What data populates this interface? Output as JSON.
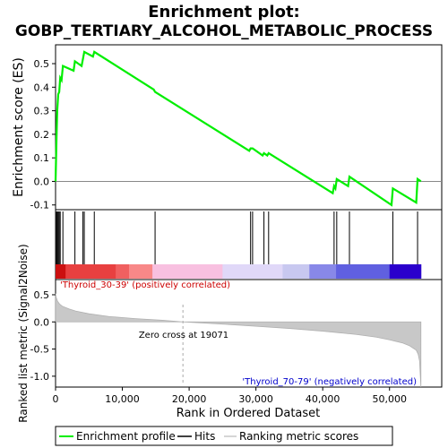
{
  "title": {
    "line1": "Enrichment plot:",
    "line2": "GOBP_TERTIARY_ALCOHOL_METABOLIC_PROCESS"
  },
  "colors": {
    "es_line": "#00ee00",
    "hit": "#000000",
    "metric_fill": "#c8c8c8",
    "zero_cross_line": "#aaaaaa",
    "pos_label": "#cc0000",
    "neg_label": "#0000cc"
  },
  "chart_data": [
    {
      "type": "line",
      "name": "enrichment-score-panel",
      "ylabel": "Enrichment score (ES)",
      "ylim": [
        -0.12,
        0.58
      ],
      "xlim": [
        0,
        55000
      ],
      "yticks": [
        -0.1,
        0.0,
        0.1,
        0.2,
        0.3,
        0.4,
        0.5
      ],
      "ytick_labels": [
        "-0.1",
        "0.0",
        "0.1",
        "0.2",
        "0.3",
        "0.4",
        "0.5"
      ],
      "series": [
        {
          "x": [
            0,
            150,
            250,
            400,
            550,
            700,
            900,
            1100,
            2700,
            2900,
            3900,
            4100,
            4300,
            5600,
            5800,
            14700,
            14900,
            29000,
            29200,
            29500,
            31000,
            31200,
            31700,
            31900,
            41500,
            41700,
            41900,
            42100,
            43800,
            44000,
            50300,
            50500,
            54000,
            54200,
            54700
          ],
          "y": [
            0.0,
            0.19,
            0.3,
            0.37,
            0.38,
            0.44,
            0.43,
            0.49,
            0.47,
            0.51,
            0.49,
            0.52,
            0.55,
            0.53,
            0.55,
            0.39,
            0.38,
            0.13,
            0.14,
            0.14,
            0.11,
            0.12,
            0.11,
            0.12,
            -0.05,
            -0.02,
            -0.03,
            0.01,
            -0.02,
            0.02,
            -0.1,
            -0.03,
            -0.09,
            0.01,
            0.0
          ]
        }
      ]
    },
    {
      "type": "hits",
      "name": "hits-panel",
      "hits": [
        150,
        250,
        400,
        550,
        700,
        1100,
        2900,
        4100,
        4300,
        5800,
        14900,
        29200,
        29500,
        31200,
        31900,
        41700,
        42100,
        44000,
        50500,
        54200
      ]
    },
    {
      "type": "area",
      "name": "ranked-metric-panel",
      "xlabel": "Rank in Ordered Dataset",
      "ylabel": "Ranked list metric (Signal2Noise)",
      "xlim": [
        0,
        55000
      ],
      "ylim": [
        -1.2,
        0.78
      ],
      "xticks": [
        0,
        10000,
        20000,
        30000,
        40000,
        50000
      ],
      "xtick_labels": [
        "0",
        "10,000",
        "20,000",
        "30,000",
        "40,000",
        "50,000"
      ],
      "yticks": [
        -1.0,
        -0.5,
        0.0,
        0.5
      ],
      "ytick_labels": [
        "-1.0",
        "-0.5",
        "0.0",
        "0.5"
      ],
      "x": [
        0,
        100,
        300,
        600,
        1000,
        2000,
        3000,
        5000,
        8000,
        12000,
        16000,
        19071,
        25000,
        30000,
        35000,
        40000,
        45000,
        48000,
        50000,
        52000,
        53000,
        54000,
        54300,
        54500,
        54700
      ],
      "values": [
        0.52,
        0.45,
        0.38,
        0.33,
        0.29,
        0.24,
        0.2,
        0.15,
        0.1,
        0.06,
        0.03,
        0.0,
        -0.04,
        -0.08,
        -0.12,
        -0.17,
        -0.23,
        -0.28,
        -0.33,
        -0.39,
        -0.44,
        -0.52,
        -0.6,
        -0.72,
        -1.2
      ],
      "zero_cross": 19071,
      "zero_cross_label": "Zero cross at 19071",
      "pos_label": "'Thyroid_30-39' (positively correlated)",
      "neg_label": "'Thyroid_70-79' (negatively correlated)"
    }
  ],
  "legend": {
    "items": [
      {
        "label": "Enrichment profile",
        "color": "#00ee00"
      },
      {
        "label": "Hits",
        "color": "#000000"
      },
      {
        "label": "Ranking metric scores",
        "color": "#c8c8c8"
      }
    ]
  }
}
